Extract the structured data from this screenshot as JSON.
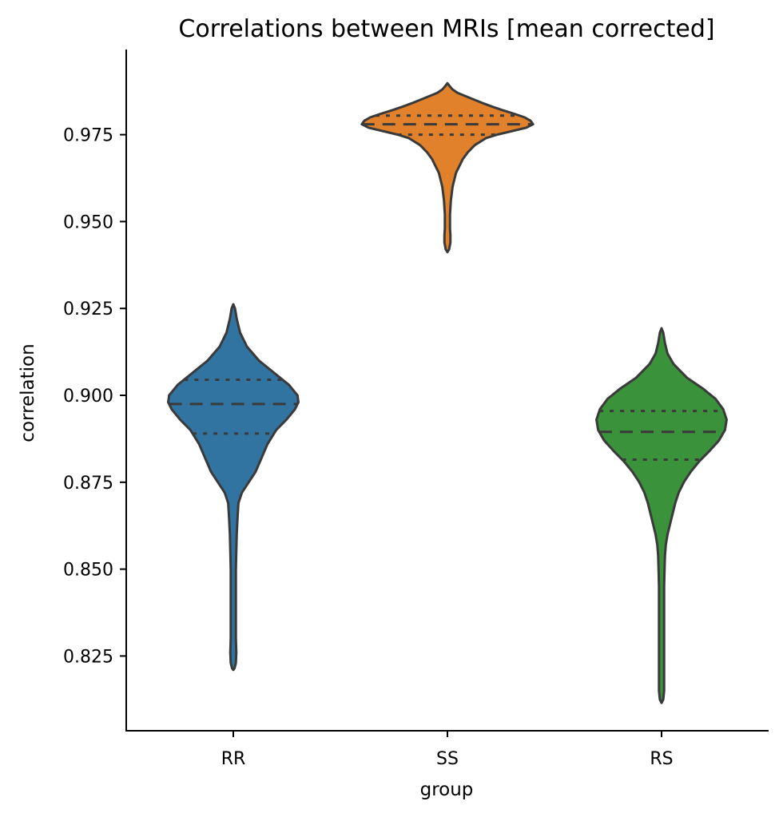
{
  "chart_data": {
    "type": "violin",
    "title": "Correlations between MRIs [mean corrected]",
    "xlabel": "group",
    "ylabel": "correlation",
    "categories": [
      "RR",
      "SS",
      "RS"
    ],
    "yticks": [
      "0.825",
      "0.850",
      "0.875",
      "0.900",
      "0.925",
      "0.950",
      "0.975"
    ],
    "ylim": [
      0.8035,
      0.9995
    ],
    "grid": false,
    "outline_color": "#3a3a3a",
    "groups": [
      {
        "category": "RR",
        "color": "#3274a1",
        "q1": 0.889,
        "median": 0.8975,
        "q3": 0.9045,
        "profile": [
          [
            0.9262,
            0.0
          ],
          [
            0.925,
            0.02
          ],
          [
            0.922,
            0.04
          ],
          [
            0.918,
            0.08
          ],
          [
            0.914,
            0.16
          ],
          [
            0.91,
            0.3
          ],
          [
            0.906,
            0.5
          ],
          [
            0.903,
            0.65
          ],
          [
            0.9,
            0.75
          ],
          [
            0.898,
            0.76
          ],
          [
            0.896,
            0.72
          ],
          [
            0.893,
            0.62
          ],
          [
            0.89,
            0.5
          ],
          [
            0.886,
            0.4
          ],
          [
            0.882,
            0.33
          ],
          [
            0.878,
            0.26
          ],
          [
            0.875,
            0.18
          ],
          [
            0.872,
            0.1
          ],
          [
            0.869,
            0.06
          ],
          [
            0.865,
            0.05
          ],
          [
            0.86,
            0.04
          ],
          [
            0.855,
            0.035
          ],
          [
            0.85,
            0.03
          ],
          [
            0.845,
            0.03
          ],
          [
            0.84,
            0.03
          ],
          [
            0.835,
            0.03
          ],
          [
            0.83,
            0.03
          ],
          [
            0.826,
            0.035
          ],
          [
            0.823,
            0.03
          ],
          [
            0.8215,
            0.015
          ],
          [
            0.821,
            0.0
          ]
        ]
      },
      {
        "category": "SS",
        "color": "#e1812c",
        "q1": 0.975,
        "median": 0.978,
        "q3": 0.9805,
        "profile": [
          [
            0.9898,
            0.0
          ],
          [
            0.989,
            0.025
          ],
          [
            0.988,
            0.06
          ],
          [
            0.987,
            0.12
          ],
          [
            0.986,
            0.22
          ],
          [
            0.985,
            0.32
          ],
          [
            0.984,
            0.42
          ],
          [
            0.983,
            0.53
          ],
          [
            0.982,
            0.65
          ],
          [
            0.981,
            0.78
          ],
          [
            0.98,
            0.9
          ],
          [
            0.979,
            0.97
          ],
          [
            0.978,
            1.0
          ],
          [
            0.977,
            0.92
          ],
          [
            0.976,
            0.75
          ],
          [
            0.975,
            0.58
          ],
          [
            0.974,
            0.45
          ],
          [
            0.972,
            0.32
          ],
          [
            0.97,
            0.24
          ],
          [
            0.968,
            0.18
          ],
          [
            0.966,
            0.14
          ],
          [
            0.964,
            0.1
          ],
          [
            0.962,
            0.08
          ],
          [
            0.96,
            0.06
          ],
          [
            0.958,
            0.05
          ],
          [
            0.956,
            0.04
          ],
          [
            0.954,
            0.035
          ],
          [
            0.952,
            0.03
          ],
          [
            0.95,
            0.03
          ],
          [
            0.948,
            0.03
          ],
          [
            0.946,
            0.035
          ],
          [
            0.944,
            0.035
          ],
          [
            0.942,
            0.02
          ],
          [
            0.9412,
            0.0
          ]
        ]
      },
      {
        "category": "RS",
        "color": "#3a923a",
        "q1": 0.8815,
        "median": 0.8895,
        "q3": 0.8955,
        "profile": [
          [
            0.9193,
            0.0
          ],
          [
            0.918,
            0.02
          ],
          [
            0.915,
            0.04
          ],
          [
            0.912,
            0.07
          ],
          [
            0.909,
            0.14
          ],
          [
            0.905,
            0.3
          ],
          [
            0.902,
            0.48
          ],
          [
            0.899,
            0.63
          ],
          [
            0.896,
            0.72
          ],
          [
            0.893,
            0.76
          ],
          [
            0.89,
            0.74
          ],
          [
            0.887,
            0.67
          ],
          [
            0.884,
            0.56
          ],
          [
            0.881,
            0.44
          ],
          [
            0.878,
            0.34
          ],
          [
            0.875,
            0.26
          ],
          [
            0.872,
            0.2
          ],
          [
            0.869,
            0.16
          ],
          [
            0.866,
            0.13
          ],
          [
            0.863,
            0.1
          ],
          [
            0.86,
            0.07
          ],
          [
            0.857,
            0.05
          ],
          [
            0.854,
            0.04
          ],
          [
            0.85,
            0.035
          ],
          [
            0.845,
            0.03
          ],
          [
            0.84,
            0.03
          ],
          [
            0.835,
            0.03
          ],
          [
            0.83,
            0.03
          ],
          [
            0.825,
            0.03
          ],
          [
            0.82,
            0.03
          ],
          [
            0.815,
            0.03
          ],
          [
            0.8125,
            0.02
          ],
          [
            0.8115,
            0.0
          ]
        ]
      }
    ]
  }
}
